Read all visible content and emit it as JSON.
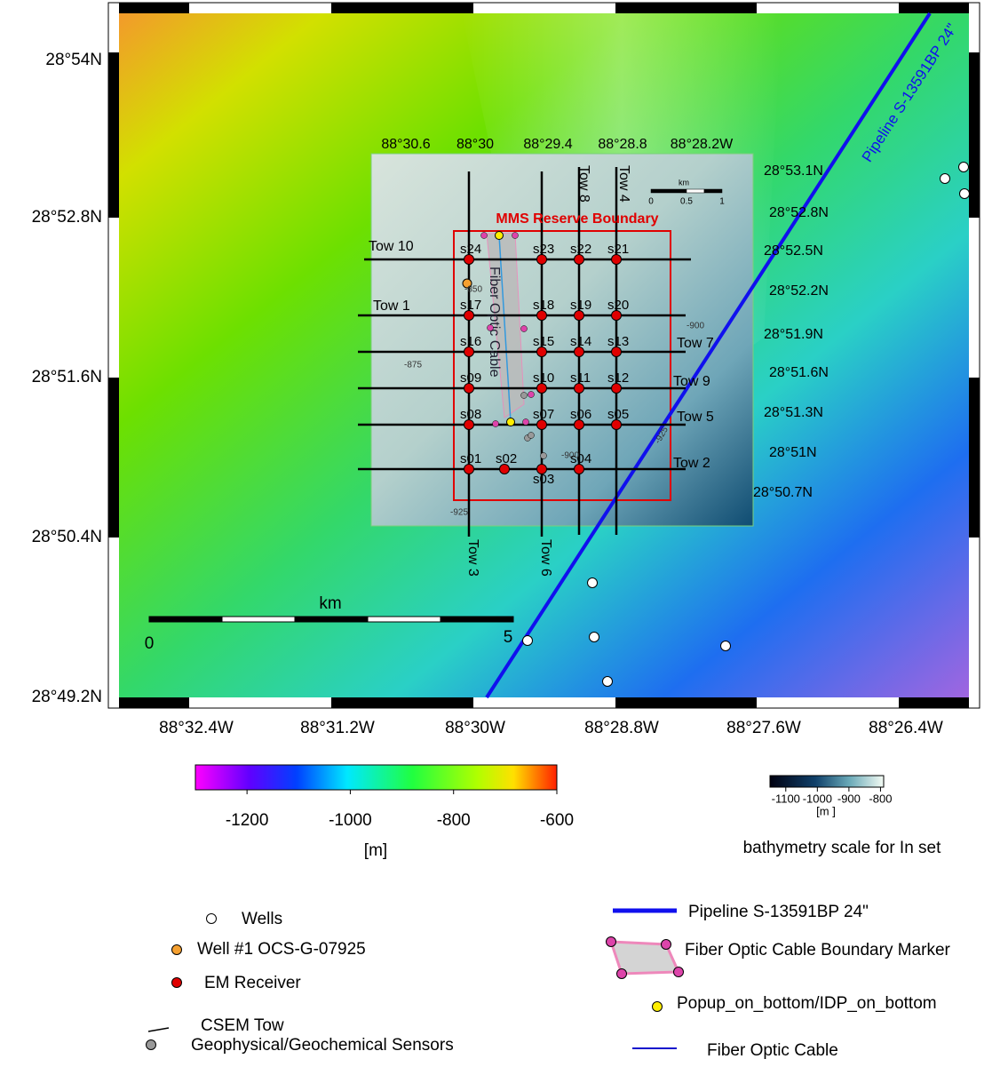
{
  "map": {
    "lat_labels": [
      "28°54N",
      "28°52.8N",
      "28°51.6N",
      "28°50.4N",
      "28°49.2N"
    ],
    "lon_labels": [
      "88°32.4W",
      "88°31.2W",
      "88°30W",
      "88°28.8W",
      "88°27.6W",
      "88°26.4W"
    ],
    "scale_bar": {
      "unit": "km",
      "labels": [
        "0",
        "5"
      ]
    },
    "pipeline_label": "Pipeline S-13591BP 24\""
  },
  "inset": {
    "lon_labels": [
      "88°30.6",
      "88°30",
      "88°29.4",
      "88°28.8",
      "88°28.2W"
    ],
    "lat_labels": [
      "28°53.1N",
      "28°52.8N",
      "28°52.5N",
      "28°52.2N",
      "28°51.9N",
      "28°51.6N",
      "28°51.3N",
      "28°51N",
      "28°50.7N"
    ],
    "reserve_label": "MMS Reserve Boundary",
    "cable_label": "Fiber Optic Cable",
    "tows": [
      "Tow 10",
      "Tow 1",
      "Tow 7",
      "Tow 9",
      "Tow 5",
      "Tow 2",
      "Tow 3",
      "Tow 6",
      "Tow 8",
      "Tow 4"
    ],
    "receivers": [
      "s24",
      "s23",
      "s22",
      "s21",
      "s17",
      "s18",
      "s19",
      "s20",
      "s16",
      "s15",
      "s14",
      "s13",
      "s09",
      "s10",
      "s11",
      "s12",
      "s08",
      "s07",
      "s06",
      "s05",
      "s01",
      "s02",
      "s03",
      "s04"
    ],
    "contour_labels": [
      "-850",
      "-875",
      "-900",
      "-925",
      "-900",
      "-925"
    ],
    "scale_bar": {
      "unit": "km",
      "labels": [
        "0",
        "0.5",
        "1"
      ]
    }
  },
  "colorbar": {
    "lim": [
      -1300,
      -600
    ],
    "ticks": [
      -1200,
      -1000,
      -800,
      -600
    ],
    "unit": "[m]"
  },
  "inset_colorbar": {
    "lim": [
      -1150,
      -790
    ],
    "ticks": [
      -1100,
      -1000,
      -900,
      -800
    ],
    "unit": "[m ]",
    "caption": "bathymetry scale for In set"
  },
  "legend": {
    "items": [
      "Wells",
      "Well #1 OCS-G-07925",
      "EM Receiver",
      "CSEM Tow",
      "Geophysical/Geochemical Sensors",
      "Pipeline S-13591BP 24\"",
      "Fiber Optic Cable Boundary Marker",
      "Popup_on_bottom/IDP_on_bottom",
      "Fiber Optic Cable"
    ]
  }
}
